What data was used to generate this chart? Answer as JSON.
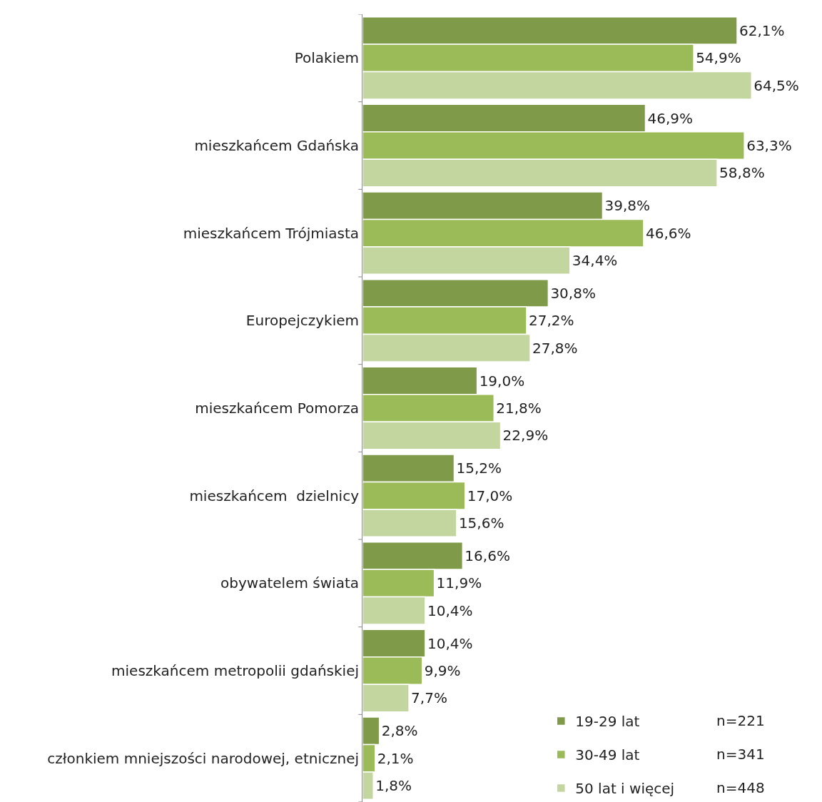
{
  "chart_data": {
    "type": "bar",
    "orientation": "horizontal",
    "categories": [
      "Polakiem",
      "mieszkańcem Gdańska",
      "mieszkańcem Trójmiasta",
      "Europejczykiem",
      "mieszkańcem Pomorza",
      "mieszkańcem  dzielnicy",
      "obywatelem świata",
      "mieszkańcem metropolii gdańskiej",
      "członkiem mniejszości narodowej, etnicznej"
    ],
    "series": [
      {
        "name": "19-29 lat",
        "color": "#7f9a48",
        "values": [
          62.1,
          46.9,
          39.8,
          30.8,
          19.0,
          15.2,
          16.6,
          10.4,
          2.8
        ],
        "value_labels": [
          "62,1%",
          "46,9%",
          "39,8%",
          "30,8%",
          "19,0%",
          "15,2%",
          "16,6%",
          "10,4%",
          "2,8%"
        ]
      },
      {
        "name": "30-49 lat",
        "color": "#9bbb59",
        "values": [
          54.9,
          63.3,
          46.6,
          27.2,
          21.8,
          17.0,
          11.9,
          9.9,
          2.1
        ],
        "value_labels": [
          "54,9%",
          "63,3%",
          "46,6%",
          "27,2%",
          "21,8%",
          "17,0%",
          "11,9%",
          "9,9%",
          "2,1%"
        ]
      },
      {
        "name": "50 lat i więcej",
        "color": "#c4d6a0",
        "values": [
          64.5,
          58.8,
          34.4,
          27.8,
          22.9,
          15.6,
          10.4,
          7.7,
          1.8
        ],
        "value_labels": [
          "64,5%",
          "58,8%",
          "34,4%",
          "27,8%",
          "22,9%",
          "15,6%",
          "10,4%",
          "7,7%",
          "1,8%"
        ]
      }
    ],
    "annotations": [
      "n=221",
      "n=341",
      "n=448"
    ],
    "legend": "bottom right"
  }
}
